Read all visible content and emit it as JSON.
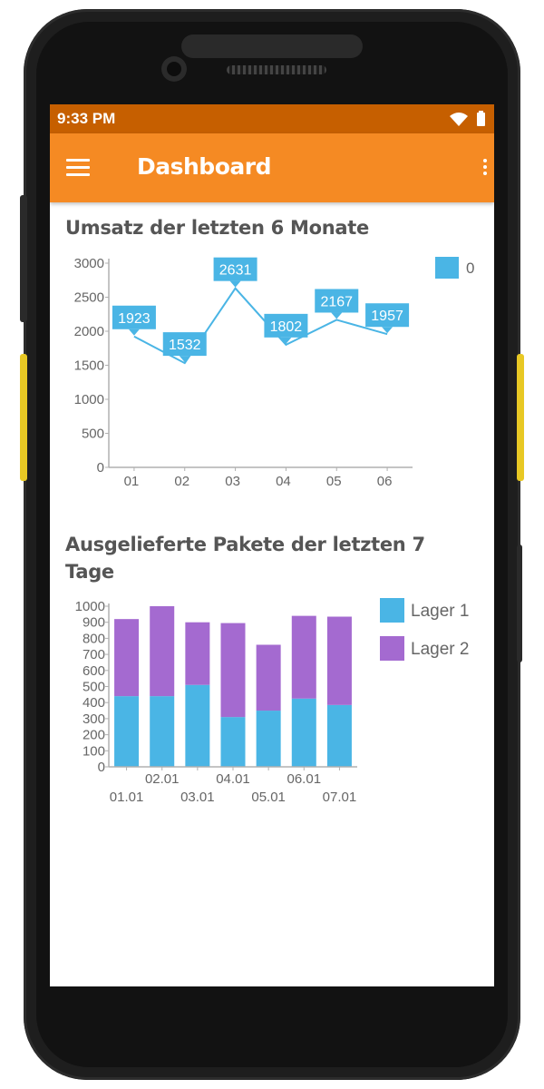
{
  "status_bar": {
    "time": "9:33 PM",
    "icons": [
      "wifi-icon",
      "battery-icon"
    ]
  },
  "app_bar": {
    "title": "Dashboard",
    "menu_icon": "menu-icon",
    "more_icon": "more-vert-icon"
  },
  "colors": {
    "status_bar": "#c65f00",
    "app_bar": "#f58a23",
    "series_blue": "#4ab5e5",
    "series_purple": "#a46ad0",
    "title_text": "#555555"
  },
  "sections": [
    {
      "title": "Umsatz der letzten 6 Monate"
    },
    {
      "title": "Ausgelieferte Pakete der letzten 7 Tage"
    }
  ],
  "chart_data": [
    {
      "type": "line",
      "categories": [
        "01",
        "02",
        "03",
        "04",
        "05",
        "06"
      ],
      "series": [
        {
          "name": "0",
          "values": [
            1923,
            1532,
            2631,
            1802,
            2167,
            1957
          ],
          "color": "#4ab5e5"
        }
      ],
      "data_labels": [
        "1923",
        "1532",
        "2631",
        "1802",
        "2167",
        "1957"
      ],
      "ylim": [
        0,
        3000
      ],
      "yticks": [
        "0",
        "500",
        "1000",
        "1500",
        "2000",
        "2500",
        "3000"
      ],
      "legend": "top-right",
      "grid": false
    },
    {
      "type": "bar",
      "stacked": true,
      "categories": [
        "01.01",
        "02.01",
        "03.01",
        "04.01",
        "05.01",
        "06.01",
        "07.01"
      ],
      "series": [
        {
          "name": "Lager 1",
          "values": [
            440,
            440,
            510,
            310,
            350,
            425,
            385
          ],
          "color": "#4ab5e5"
        },
        {
          "name": "Lager 2",
          "values": [
            480,
            560,
            390,
            585,
            410,
            515,
            550
          ],
          "color": "#a46ad0"
        }
      ],
      "ylim": [
        0,
        1000
      ],
      "yticks": [
        "0",
        "100",
        "200",
        "300",
        "400",
        "500",
        "600",
        "700",
        "800",
        "900",
        "1000"
      ],
      "legend": "right",
      "grid": false
    }
  ]
}
